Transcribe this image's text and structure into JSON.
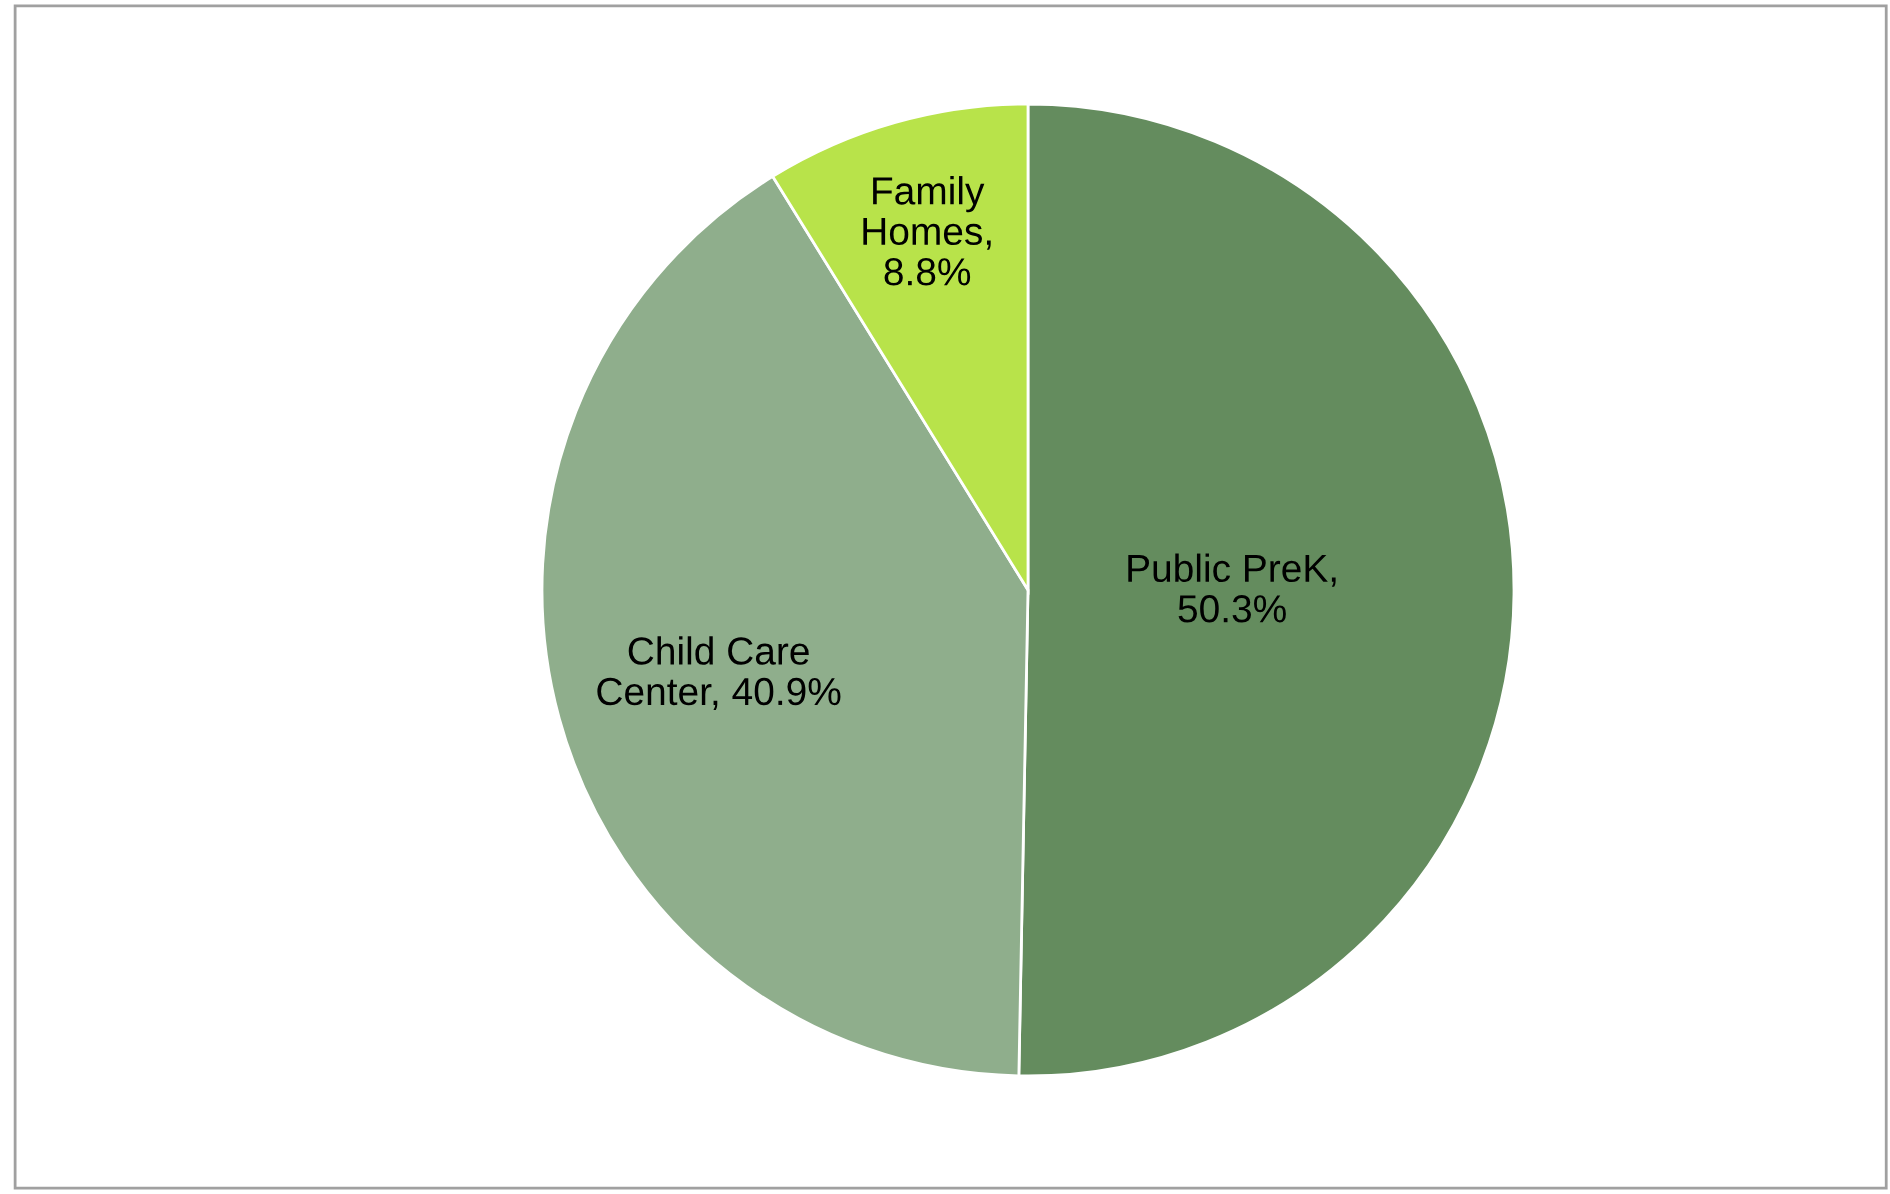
{
  "chart_data": {
    "type": "pie",
    "categories": [
      "Public PreK",
      "Child Care Center",
      "Family Homes"
    ],
    "values": [
      50.3,
      40.9,
      8.8
    ],
    "colors": [
      "#648c5e",
      "#8fae8c",
      "#b8e34a"
    ],
    "value_labels": [
      ", 50.3%",
      ", 40.9%",
      ", 8.8%"
    ],
    "legend": false
  }
}
